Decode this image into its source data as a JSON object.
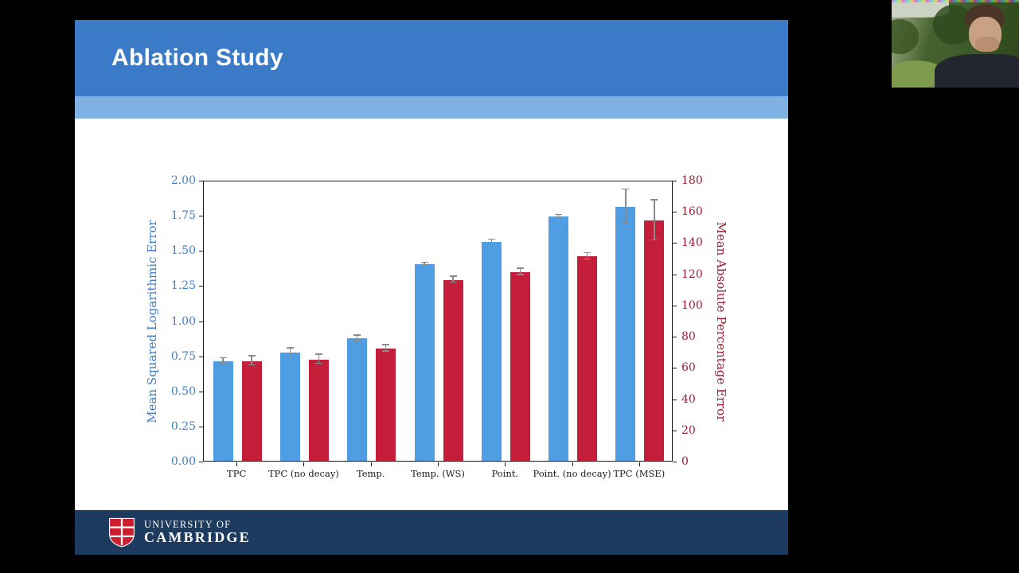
{
  "slide": {
    "title": "Ablation Study"
  },
  "footer": {
    "university_line1": "UNIVERSITY OF",
    "university_line2": "CAMBRIDGE"
  },
  "theme": {
    "screen_bg": "#000000",
    "slide_bg": "#ffffff",
    "slide_header": "#3a7ac6",
    "slide_accent": "#7fb2e2",
    "footer_bg": "#1d3a5f",
    "axis_blue": "#3d7fc8",
    "axis_red": "#9c1b30"
  },
  "chart_data": {
    "type": "bar",
    "title": "",
    "categories": [
      "TPC",
      "TPC (no decay)",
      "Temp.",
      "Temp. (WS)",
      "Point.",
      "Point. (no decay)",
      "TPC (MSE)"
    ],
    "series": [
      {
        "name": "Mean Squared Logarithmic Error",
        "axis": "left",
        "color": "#4f9de3",
        "values": [
          0.71,
          0.77,
          0.87,
          1.4,
          1.56,
          1.74,
          1.81
        ],
        "errors": [
          0.02,
          0.03,
          0.02,
          0.01,
          0.015,
          0.01,
          0.12
        ]
      },
      {
        "name": "Mean Absolute Percentage Error",
        "axis": "right",
        "color": "#c41e3a",
        "values": [
          64,
          65,
          72,
          116,
          121,
          131,
          154
        ],
        "errors": [
          3,
          3,
          2,
          2,
          2,
          2,
          13
        ]
      }
    ],
    "ylabel_left": "Mean Squared Logarithmic Error",
    "ylabel_right": "Mean Absolute Percentage Error",
    "ylim_left": [
      0,
      2.0
    ],
    "ylim_right": [
      0,
      180
    ],
    "yticks_left": [
      "0.00",
      "0.25",
      "0.50",
      "0.75",
      "1.00",
      "1.25",
      "1.50",
      "1.75",
      "2.00"
    ],
    "yticks_right": [
      "0",
      "20",
      "40",
      "60",
      "80",
      "100",
      "120",
      "140",
      "160",
      "180"
    ],
    "grid": false,
    "legend": "none"
  }
}
